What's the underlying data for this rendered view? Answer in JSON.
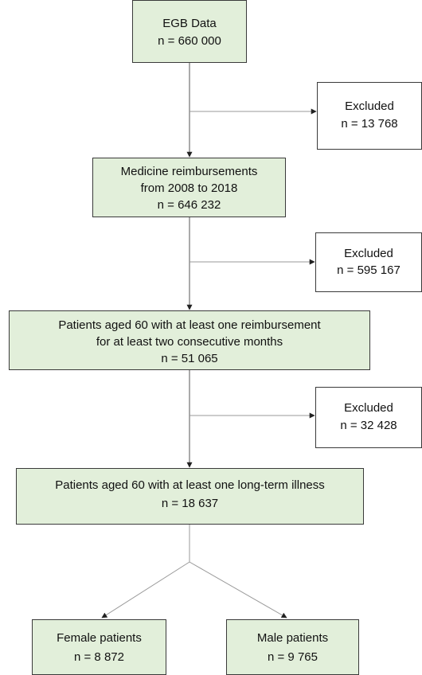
{
  "nodes": [
    {
      "lines": [
        "EGB Data",
        "n = 660 000"
      ]
    },
    {
      "lines": [
        "Excluded",
        "n = 13 768"
      ]
    },
    {
      "lines": [
        "Medicine reimbursements",
        "from 2008 to 2018",
        "n = 646 232"
      ]
    },
    {
      "lines": [
        "Excluded",
        "n = 595 167"
      ]
    },
    {
      "lines": [
        "Patients aged 60 with at least one reimbursement",
        "for at least two consecutive months",
        "n = 51 065"
      ]
    },
    {
      "lines": [
        "Excluded",
        "n = 32 428"
      ]
    },
    {
      "lines": [
        "Patients aged 60 with at least one long-term illness",
        "n = 18 637"
      ]
    },
    {
      "lines": [
        "Female patients",
        "n = 8 872"
      ]
    },
    {
      "lines": [
        "Male patients",
        "n = 9 765"
      ]
    }
  ]
}
